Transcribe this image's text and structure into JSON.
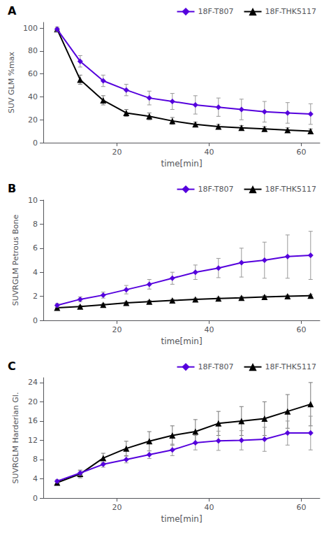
{
  "chart_data": [
    {
      "type": "line",
      "title": "A",
      "x": [
        7,
        12,
        17,
        22,
        27,
        32,
        37,
        42,
        47,
        52,
        57,
        62
      ],
      "xlabel": "time[min]",
      "ylabel": "SUV GLM %max",
      "xlim": [
        4,
        64
      ],
      "xticks": [
        20,
        40,
        60
      ],
      "ylim": [
        0,
        105
      ],
      "yticks": [
        0,
        20,
        40,
        60,
        80,
        100
      ],
      "grid": false,
      "legend": "upper right",
      "series": [
        {
          "name": "18F-T807",
          "color": "#5500dd",
          "marker": "diamond",
          "values": [
            99,
            71,
            54,
            46,
            39,
            36,
            33,
            31,
            29,
            27,
            26,
            25
          ],
          "errors": [
            2,
            5,
            5,
            5,
            6,
            7,
            8,
            8,
            9,
            9,
            9,
            9
          ]
        },
        {
          "name": "18F-THK5117",
          "color": "#000000",
          "marker": "triangle",
          "values": [
            99,
            55,
            37,
            26,
            23,
            19,
            16,
            14,
            13,
            12,
            11,
            10
          ],
          "errors": [
            1,
            4,
            4,
            3,
            3,
            3,
            2,
            2,
            2,
            2,
            2,
            2
          ]
        }
      ]
    },
    {
      "type": "line",
      "title": "B",
      "x": [
        7,
        12,
        17,
        22,
        27,
        32,
        37,
        42,
        47,
        52,
        57,
        62
      ],
      "xlabel": "time[min]",
      "ylabel": "SUVRGLM Petrous Bone",
      "xlim": [
        4,
        64
      ],
      "xticks": [
        20,
        40,
        60
      ],
      "ylim": [
        0,
        10
      ],
      "yticks": [
        0,
        2,
        4,
        6,
        8,
        10
      ],
      "grid": false,
      "legend": "upper right",
      "series": [
        {
          "name": "18F-T807",
          "color": "#5500dd",
          "marker": "diamond",
          "values": [
            1.25,
            1.75,
            2.1,
            2.55,
            3.0,
            3.5,
            4.0,
            4.35,
            4.8,
            5.0,
            5.3,
            5.4
          ],
          "errors": [
            0.15,
            0.2,
            0.25,
            0.35,
            0.4,
            0.5,
            0.6,
            0.8,
            1.2,
            1.5,
            1.8,
            2.0
          ]
        },
        {
          "name": "18F-THK5117",
          "color": "#000000",
          "marker": "triangle",
          "values": [
            1.05,
            1.15,
            1.3,
            1.45,
            1.55,
            1.65,
            1.75,
            1.82,
            1.88,
            1.95,
            2.0,
            2.05
          ],
          "errors": [
            0.05,
            0.08,
            0.1,
            0.1,
            0.1,
            0.1,
            0.1,
            0.1,
            0.1,
            0.1,
            0.1,
            0.1
          ]
        }
      ]
    },
    {
      "type": "line",
      "title": "C",
      "x": [
        7,
        12,
        17,
        22,
        27,
        32,
        37,
        42,
        47,
        52,
        57,
        62
      ],
      "xlabel": "time[min]",
      "ylabel": "SUVRGLM Harderian Gl.",
      "xlim": [
        4,
        64
      ],
      "xticks": [
        20,
        40,
        60
      ],
      "ylim": [
        0,
        25
      ],
      "yticks": [
        0,
        4,
        8,
        12,
        16,
        20,
        24
      ],
      "grid": false,
      "legend": "upper right",
      "series": [
        {
          "name": "18F-T807",
          "color": "#5500dd",
          "marker": "diamond",
          "values": [
            3.5,
            5.2,
            7.0,
            8.0,
            9.0,
            10.0,
            11.5,
            11.9,
            12.0,
            12.2,
            13.5,
            13.5
          ],
          "errors": [
            0.3,
            0.5,
            0.6,
            0.7,
            0.8,
            1.2,
            1.5,
            2.0,
            2.0,
            2.5,
            2.5,
            3.5
          ]
        },
        {
          "name": "18F-THK5117",
          "color": "#000000",
          "marker": "triangle",
          "values": [
            3.2,
            5.0,
            8.3,
            10.3,
            11.8,
            13.0,
            13.8,
            15.5,
            16.0,
            16.5,
            18.0,
            19.5
          ],
          "errors": [
            0.3,
            0.8,
            1.0,
            1.5,
            2.0,
            2.0,
            2.5,
            2.5,
            3.0,
            3.5,
            3.5,
            4.5
          ]
        }
      ]
    }
  ]
}
